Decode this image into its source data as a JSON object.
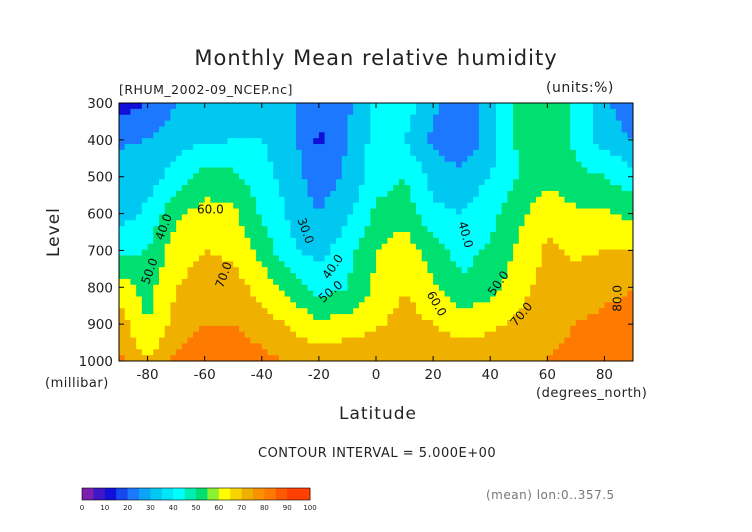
{
  "header": {
    "title": "Monthly Mean relative humidity",
    "source_file": "[RHUM_2002-09_NCEP.nc]",
    "units": "(units:%)"
  },
  "axes": {
    "ylabel": "Level",
    "ylabel_units": "(millibar)",
    "xlabel": "Latitude",
    "xlabel_units": "(degrees_north)"
  },
  "footer": {
    "contour_interval": "CONTOUR INTERVAL = 5.000E+00",
    "averaging_note": "(mean) lon:0..357.5"
  },
  "chart_data": {
    "type": "heatmap",
    "subtype": "filled-contour",
    "title": "Monthly Mean relative humidity",
    "xlabel": "Latitude",
    "ylabel": "Level",
    "xlim": [
      -90,
      90
    ],
    "ylim": [
      1000,
      300
    ],
    "x_ticks": [
      -80,
      -60,
      -40,
      -20,
      0,
      20,
      40,
      60,
      80
    ],
    "y_ticks": [
      300,
      400,
      500,
      600,
      700,
      800,
      900,
      1000
    ],
    "contour_interval": 5,
    "levels": [
      0,
      10,
      20,
      30,
      40,
      50,
      60,
      70,
      80,
      90,
      100
    ],
    "level_colors": [
      "#7a1fb0",
      "#1010d8",
      "#1e40f5",
      "#1c78ff",
      "#00c8f0",
      "#00ffff",
      "#00e070",
      "#a0e020",
      "#ffff00",
      "#f0b000",
      "#ff7a00",
      "#ff4000",
      "#f01010"
    ],
    "latitudes": [
      -90,
      -80,
      -70,
      -60,
      -50,
      -40,
      -30,
      -20,
      -10,
      0,
      10,
      20,
      30,
      40,
      50,
      60,
      70,
      80,
      90
    ],
    "pressure_levels": [
      300,
      400,
      500,
      600,
      700,
      800,
      900,
      1000
    ],
    "values": [
      [
        16,
        20,
        30,
        38,
        36,
        38,
        32,
        22,
        28,
        42,
        46,
        32,
        24,
        36,
        56,
        58,
        48,
        32,
        22
      ],
      [
        28,
        30,
        36,
        38,
        40,
        40,
        34,
        18,
        30,
        44,
        40,
        28,
        20,
        36,
        52,
        58,
        48,
        36,
        30
      ],
      [
        36,
        36,
        44,
        54,
        52,
        44,
        36,
        24,
        32,
        46,
        50,
        36,
        34,
        40,
        50,
        58,
        52,
        50,
        44
      ],
      [
        36,
        42,
        58,
        64,
        62,
        48,
        38,
        30,
        38,
        52,
        56,
        42,
        40,
        46,
        58,
        66,
        62,
        62,
        56
      ],
      [
        46,
        50,
        66,
        70,
        68,
        56,
        42,
        36,
        46,
        60,
        66,
        54,
        46,
        52,
        62,
        72,
        68,
        70,
        70
      ],
      [
        66,
        56,
        70,
        74,
        74,
        66,
        56,
        46,
        50,
        62,
        70,
        62,
        52,
        56,
        66,
        74,
        76,
        78,
        80
      ],
      [
        75,
        60,
        74,
        80,
        80,
        76,
        68,
        62,
        64,
        68,
        74,
        70,
        66,
        68,
        72,
        78,
        80,
        82,
        82
      ],
      [
        82,
        70,
        82,
        86,
        86,
        82,
        80,
        76,
        78,
        80,
        80,
        78,
        76,
        76,
        78,
        80,
        82,
        84,
        84
      ]
    ],
    "contour_labels": [
      "40.0",
      "50.0",
      "60.0",
      "70.0",
      "30.0",
      "40.0",
      "50.0",
      "40.0",
      "60.0",
      "50.0",
      "70.0",
      "80.0"
    ],
    "colorbar_ticks": [
      "0",
      "10",
      "20",
      "30",
      "40",
      "50",
      "60",
      "70",
      "80",
      "90",
      "100"
    ]
  }
}
